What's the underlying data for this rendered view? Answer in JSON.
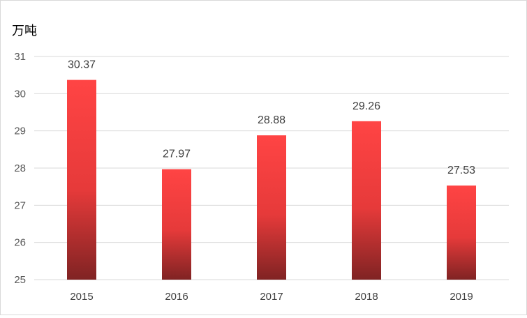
{
  "chart_data": {
    "type": "bar",
    "categories": [
      "2015",
      "2016",
      "2017",
      "2018",
      "2019"
    ],
    "values": [
      30.37,
      27.97,
      28.88,
      29.26,
      27.53
    ],
    "data_labels": [
      "30.37",
      "27.97",
      "28.88",
      "29.26",
      "27.53"
    ],
    "ylabel": "万吨",
    "ylim": [
      25,
      31
    ],
    "yticks": [
      "25",
      "26",
      "27",
      "28",
      "29",
      "30",
      "31"
    ],
    "grid": true,
    "colors": {
      "bar_top": "#ff4444",
      "bar_mid": "#e63a3a",
      "bar_bottom": "#802323",
      "grid": "#d9d9d9"
    }
  }
}
